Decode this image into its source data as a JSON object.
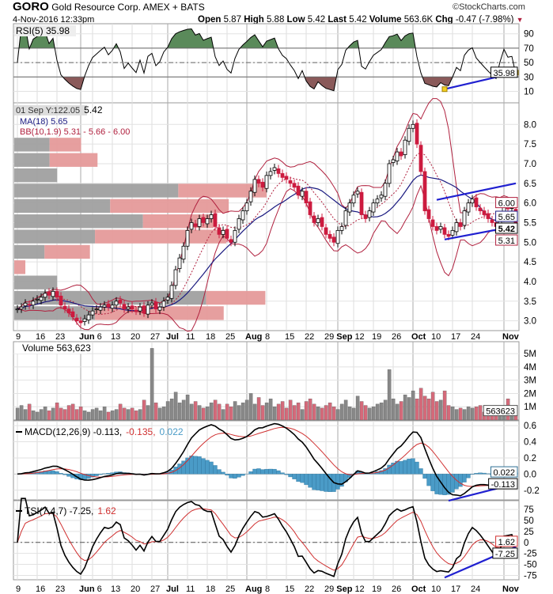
{
  "header": {
    "symbol": "GORO",
    "company": "Gold Resource Corp. AMEX + BATS",
    "copyright": "©StockCharts.com",
    "datetime": "4-Nov-2016 12:33pm",
    "open_label": "Open",
    "open": "5.87",
    "high_label": "High",
    "high": "5.88",
    "low_label": "Low",
    "low": "5.42",
    "last_label": "Last",
    "last": "5.42",
    "volume_label": "Volume",
    "volume": "563.6K",
    "chg_label": "Chg",
    "chg": "-0.47 (-7.98%)"
  },
  "colors": {
    "up": "#000000",
    "down": "#cc1b3f",
    "ma": "#1a1a80",
    "bb": "#b0203e",
    "trend": "#2020d0",
    "hist": "#4a9bc7",
    "vbp_up": "#a0a0a0",
    "vbp_down": "#e59a9a",
    "rsi_over": "#5a8a5a",
    "rsi_under": "#8a5a5a"
  },
  "chart_data": {
    "type": "candlestick",
    "dates_axis": [
      {
        "label": "9",
        "i": 0,
        "bold": false
      },
      {
        "label": "16",
        "i": 5,
        "bold": false
      },
      {
        "label": "23",
        "i": 10,
        "bold": false
      },
      {
        "label": "Jun",
        "i": 16,
        "bold": true
      },
      {
        "label": "6",
        "i": 19,
        "bold": false
      },
      {
        "label": "13",
        "i": 24,
        "bold": false
      },
      {
        "label": "20",
        "i": 29,
        "bold": false
      },
      {
        "label": "27",
        "i": 34,
        "bold": false
      },
      {
        "label": "Jul",
        "i": 38,
        "bold": true
      },
      {
        "label": "11",
        "i": 43,
        "bold": false
      },
      {
        "label": "18",
        "i": 48,
        "bold": false
      },
      {
        "label": "25",
        "i": 53,
        "bold": false
      },
      {
        "label": "Aug",
        "i": 58,
        "bold": true
      },
      {
        "label": "8",
        "i": 63,
        "bold": false
      },
      {
        "label": "15",
        "i": 68,
        "bold": false
      },
      {
        "label": "22",
        "i": 73,
        "bold": false
      },
      {
        "label": "29",
        "i": 78,
        "bold": false
      },
      {
        "label": "Sep",
        "i": 81,
        "bold": true
      },
      {
        "label": "12",
        "i": 85,
        "bold": false
      },
      {
        "label": "19",
        "i": 90,
        "bold": false
      },
      {
        "label": "26",
        "i": 95,
        "bold": false
      },
      {
        "label": "Oct",
        "i": 100,
        "bold": true
      },
      {
        "label": "10",
        "i": 105,
        "bold": false
      },
      {
        "label": "17",
        "i": 110,
        "bold": false
      },
      {
        "label": "24",
        "i": 115,
        "bold": false
      },
      {
        "label": "Nov",
        "i": 123,
        "bold": true
      }
    ],
    "close": [
      3.3,
      3.35,
      3.45,
      3.4,
      3.5,
      3.55,
      3.6,
      3.7,
      3.65,
      3.75,
      3.6,
      3.4,
      3.3,
      3.2,
      3.1,
      3.0,
      2.95,
      3.05,
      3.15,
      3.25,
      3.3,
      3.35,
      3.4,
      3.35,
      3.4,
      3.5,
      3.45,
      3.3,
      3.35,
      3.3,
      3.25,
      3.35,
      3.2,
      3.4,
      3.45,
      3.3,
      3.35,
      3.5,
      3.6,
      3.9,
      4.3,
      4.6,
      4.9,
      5.3,
      5.5,
      5.4,
      5.6,
      5.5,
      5.6,
      5.7,
      5.4,
      5.2,
      5.3,
      5.1,
      5.0,
      5.3,
      5.6,
      5.8,
      6.0,
      6.3,
      6.6,
      6.5,
      6.4,
      6.7,
      6.8,
      6.9,
      6.75,
      6.65,
      6.6,
      6.5,
      6.4,
      6.2,
      6.3,
      6.0,
      5.7,
      5.5,
      5.6,
      5.4,
      5.2,
      5.1,
      5.0,
      5.3,
      5.4,
      5.8,
      6.0,
      6.2,
      6.3,
      5.7,
      5.6,
      5.8,
      6.0,
      6.1,
      6.2,
      6.5,
      7.0,
      7.1,
      7.3,
      7.2,
      7.6,
      7.9,
      8.0,
      7.5,
      6.8,
      5.8,
      5.6,
      5.4,
      5.3,
      5.4,
      5.2,
      5.15,
      5.3,
      5.5,
      5.4,
      5.8,
      6.0,
      6.1,
      5.9,
      5.8,
      5.7,
      5.6,
      5.5,
      5.4,
      5.65,
      6.0,
      5.85,
      5.87,
      5.42
    ],
    "volume_millions": [
      0.9,
      1.1,
      0.8,
      1.2,
      0.7,
      0.6,
      0.8,
      1.0,
      0.7,
      0.9,
      1.3,
      0.9,
      0.8,
      1.1,
      1.2,
      0.8,
      1.0,
      0.7,
      0.6,
      0.8,
      0.9,
      0.7,
      1.0,
      0.6,
      0.7,
      0.8,
      1.2,
      0.9,
      0.8,
      0.9,
      0.7,
      0.8,
      1.5,
      1.1,
      5.4,
      1.3,
      0.9,
      1.0,
      1.4,
      1.6,
      2.1,
      1.3,
      1.5,
      1.9,
      1.2,
      1.4,
      1.1,
      0.9,
      1.0,
      1.3,
      1.5,
      1.2,
      0.8,
      1.2,
      1.0,
      1.4,
      1.1,
      1.3,
      1.5,
      2.0,
      1.2,
      1.7,
      1.1,
      1.3,
      1.6,
      1.0,
      1.2,
      1.4,
      0.9,
      1.5,
      1.1,
      1.3,
      0.8,
      1.4,
      1.6,
      1.2,
      1.0,
      0.9,
      1.1,
      1.3,
      1.0,
      0.8,
      1.2,
      1.5,
      1.0,
      0.9,
      1.8,
      1.4,
      1.1,
      0.9,
      1.0,
      1.2,
      1.3,
      1.5,
      3.8,
      1.6,
      1.2,
      1.4,
      1.9,
      1.7,
      2.2,
      1.6,
      2.4,
      1.8,
      1.6,
      2.1,
      1.4,
      1.5,
      2.2,
      1.1,
      1.0,
      0.8,
      0.9,
      0.8,
      1.0,
      0.9,
      1.0,
      1.1,
      0.6,
      0.7,
      0.7,
      0.6,
      0.8,
      0.9,
      1.6,
      1.0,
      0.56
    ],
    "volume_by_price": [
      {
        "low": 7.29,
        "high": 7.68,
        "up_pct": 14,
        "down_pct": 12.5
      },
      {
        "low": 6.9,
        "high": 7.29,
        "up_pct": 14,
        "down_pct": 19
      },
      {
        "low": 6.51,
        "high": 6.9,
        "up_pct": 17,
        "down_pct": 0
      },
      {
        "low": 6.12,
        "high": 6.51,
        "up_pct": 65,
        "down_pct": 35
      },
      {
        "low": 5.73,
        "high": 6.12,
        "up_pct": 38,
        "down_pct": 47
      },
      {
        "low": 5.34,
        "high": 5.73,
        "up_pct": 51,
        "down_pct": 28
      },
      {
        "low": 4.95,
        "high": 5.34,
        "up_pct": 32,
        "down_pct": 52
      },
      {
        "low": 4.56,
        "high": 4.95,
        "up_pct": 12,
        "down_pct": 18
      },
      {
        "low": 4.17,
        "high": 4.56,
        "up_pct": 0,
        "down_pct": 4.4
      },
      {
        "low": 3.78,
        "high": 4.17,
        "up_pct": 17,
        "down_pct": 0
      },
      {
        "low": 3.39,
        "high": 3.78,
        "up_pct": 76,
        "down_pct": 23.5
      },
      {
        "low": 3.0,
        "high": 3.39,
        "up_pct": 32,
        "down_pct": 51
      }
    ],
    "price_axis": {
      "ticks": [
        "8.0",
        "7.5",
        "7.0",
        "6.5",
        "6.0",
        "5.5",
        "5.0",
        "4.5",
        "4.0",
        "3.5",
        "3.0"
      ],
      "ylim": [
        2.75,
        8.55
      ]
    },
    "rsi_axis": {
      "ticks": [
        "90",
        "70",
        "50",
        "30",
        "10"
      ],
      "ylim": [
        -6,
        104
      ]
    },
    "volume_axis": {
      "ticks": [
        "5M",
        "4M",
        "3M",
        "2M",
        "1M"
      ],
      "ylim": [
        0,
        5.9
      ]
    },
    "macd_axis": {
      "ticks": [
        "0.6",
        "0.4",
        "0.2",
        "0.0",
        "-0.2"
      ],
      "ylim": [
        -0.32,
        0.66
      ]
    },
    "tsi_axis": {
      "ticks": [
        "75",
        "50",
        "25",
        "0",
        "-25",
        "-50",
        "-75"
      ],
      "ylim": [
        -85,
        95
      ]
    },
    "trendlines": {
      "price_upper": [
        [
          106,
          6.08
        ],
        [
          126,
          6.5
        ]
      ],
      "price_lower": [
        [
          108,
          5.07
        ],
        [
          126,
          5.41
        ]
      ],
      "rsi": [
        [
          108,
          13
        ],
        [
          126,
          35.98
        ]
      ],
      "macd": [
        [
          109,
          -0.33
        ],
        [
          126,
          -0.12
        ]
      ],
      "tsi": [
        [
          108,
          -80
        ],
        [
          126,
          -10
        ]
      ]
    },
    "legends": {
      "rsi": "RSI(5) 35.98",
      "price_tip": "01 Sep Y:122.05",
      "price_last": "5.42",
      "ma": "MA(18) 5.65",
      "bb": "BB(10,1.9) 5.31 - 5.66 - 6.00",
      "volume": "Volume 563,623",
      "macd_a": "MACD(12,26,9) -0.113,",
      "macd_b": "-0.135,",
      "macd_c": "0.022",
      "tsi_a": "TSI(7,4,7) -7.25,",
      "tsi_b": "1.62"
    },
    "tags": {
      "rsi": "35.98",
      "bb_upper": "6.00",
      "ma": "5.65",
      "last": "5.42",
      "bb_lower": "5.31",
      "volume": "563623",
      "macd_hist": "0.022",
      "macd": "-0.113",
      "tsi_signal": "1.62",
      "tsi": "-7.25"
    }
  }
}
